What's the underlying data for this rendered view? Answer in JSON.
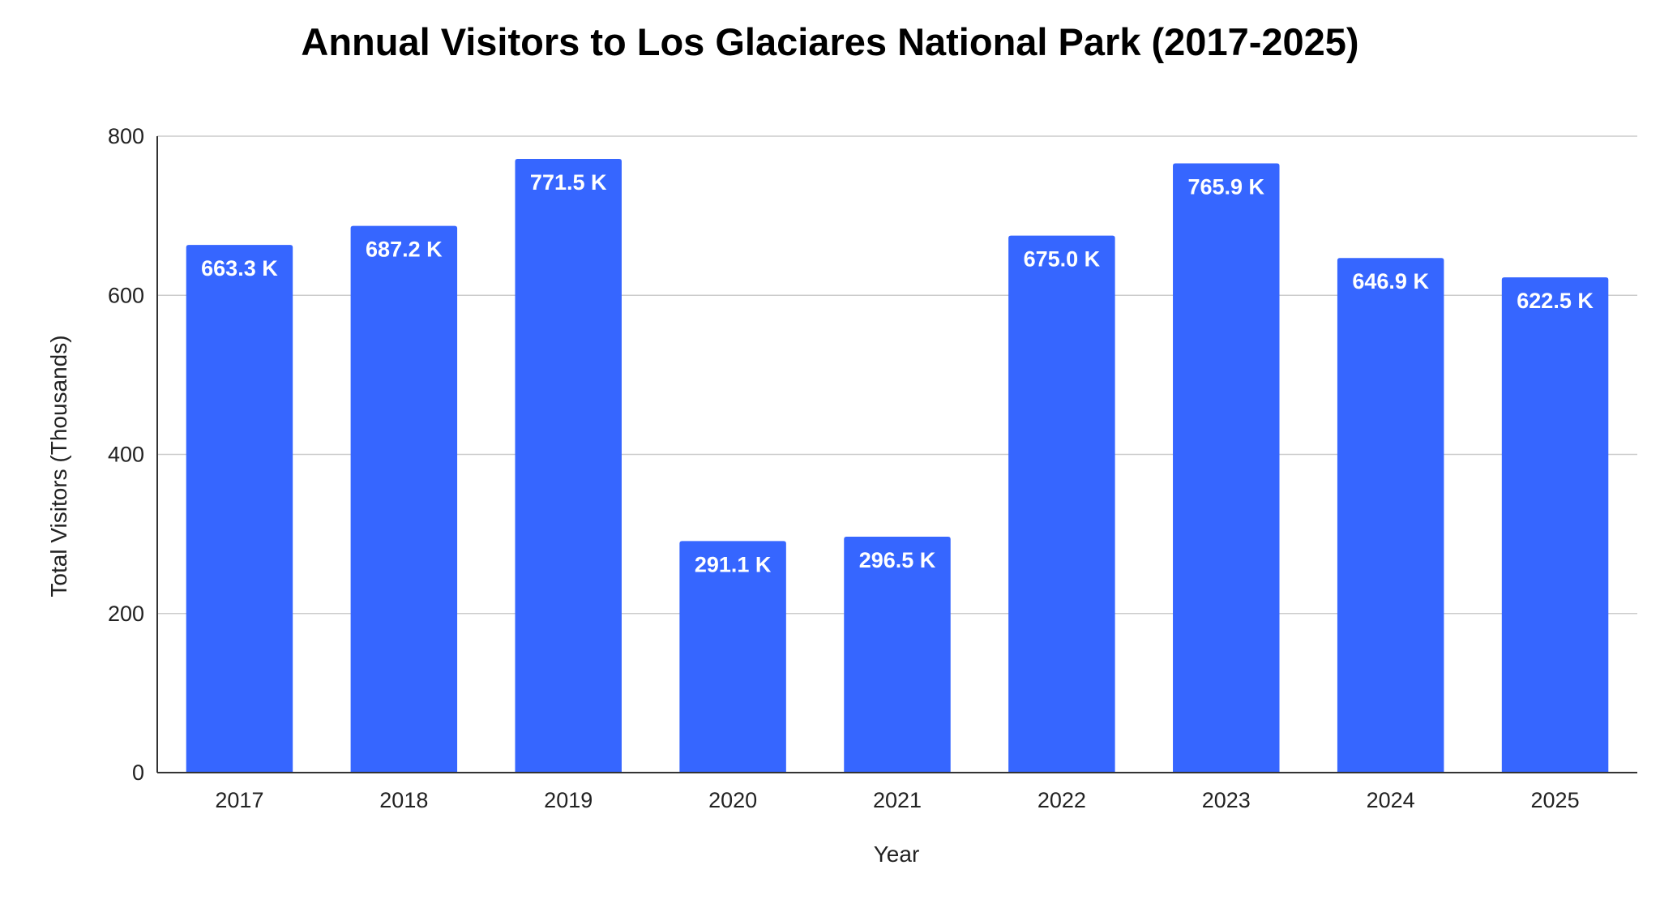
{
  "chart_data": {
    "type": "bar",
    "title": "Annual Visitors to Los Glaciares National Park (2017-2025)",
    "xlabel": "Year",
    "ylabel": "Total Visitors (Thousands)",
    "categories": [
      "2017",
      "2018",
      "2019",
      "2020",
      "2021",
      "2022",
      "2023",
      "2024",
      "2025"
    ],
    "values": [
      663.3,
      687.2,
      771.5,
      291.1,
      296.5,
      675.0,
      765.9,
      646.9,
      622.5
    ],
    "data_labels": [
      "663.3 K",
      "687.2 K",
      "771.5 K",
      "291.1 K",
      "296.5 K",
      "675.0 K",
      "765.9 K",
      "646.9 K",
      "622.5 K"
    ],
    "ylim": [
      0,
      800
    ],
    "yticks": [
      "0",
      "200",
      "400",
      "600",
      "800"
    ],
    "grid": true,
    "legend": "none",
    "bar_color": "#3666ff",
    "label_color": "#ffffff"
  }
}
